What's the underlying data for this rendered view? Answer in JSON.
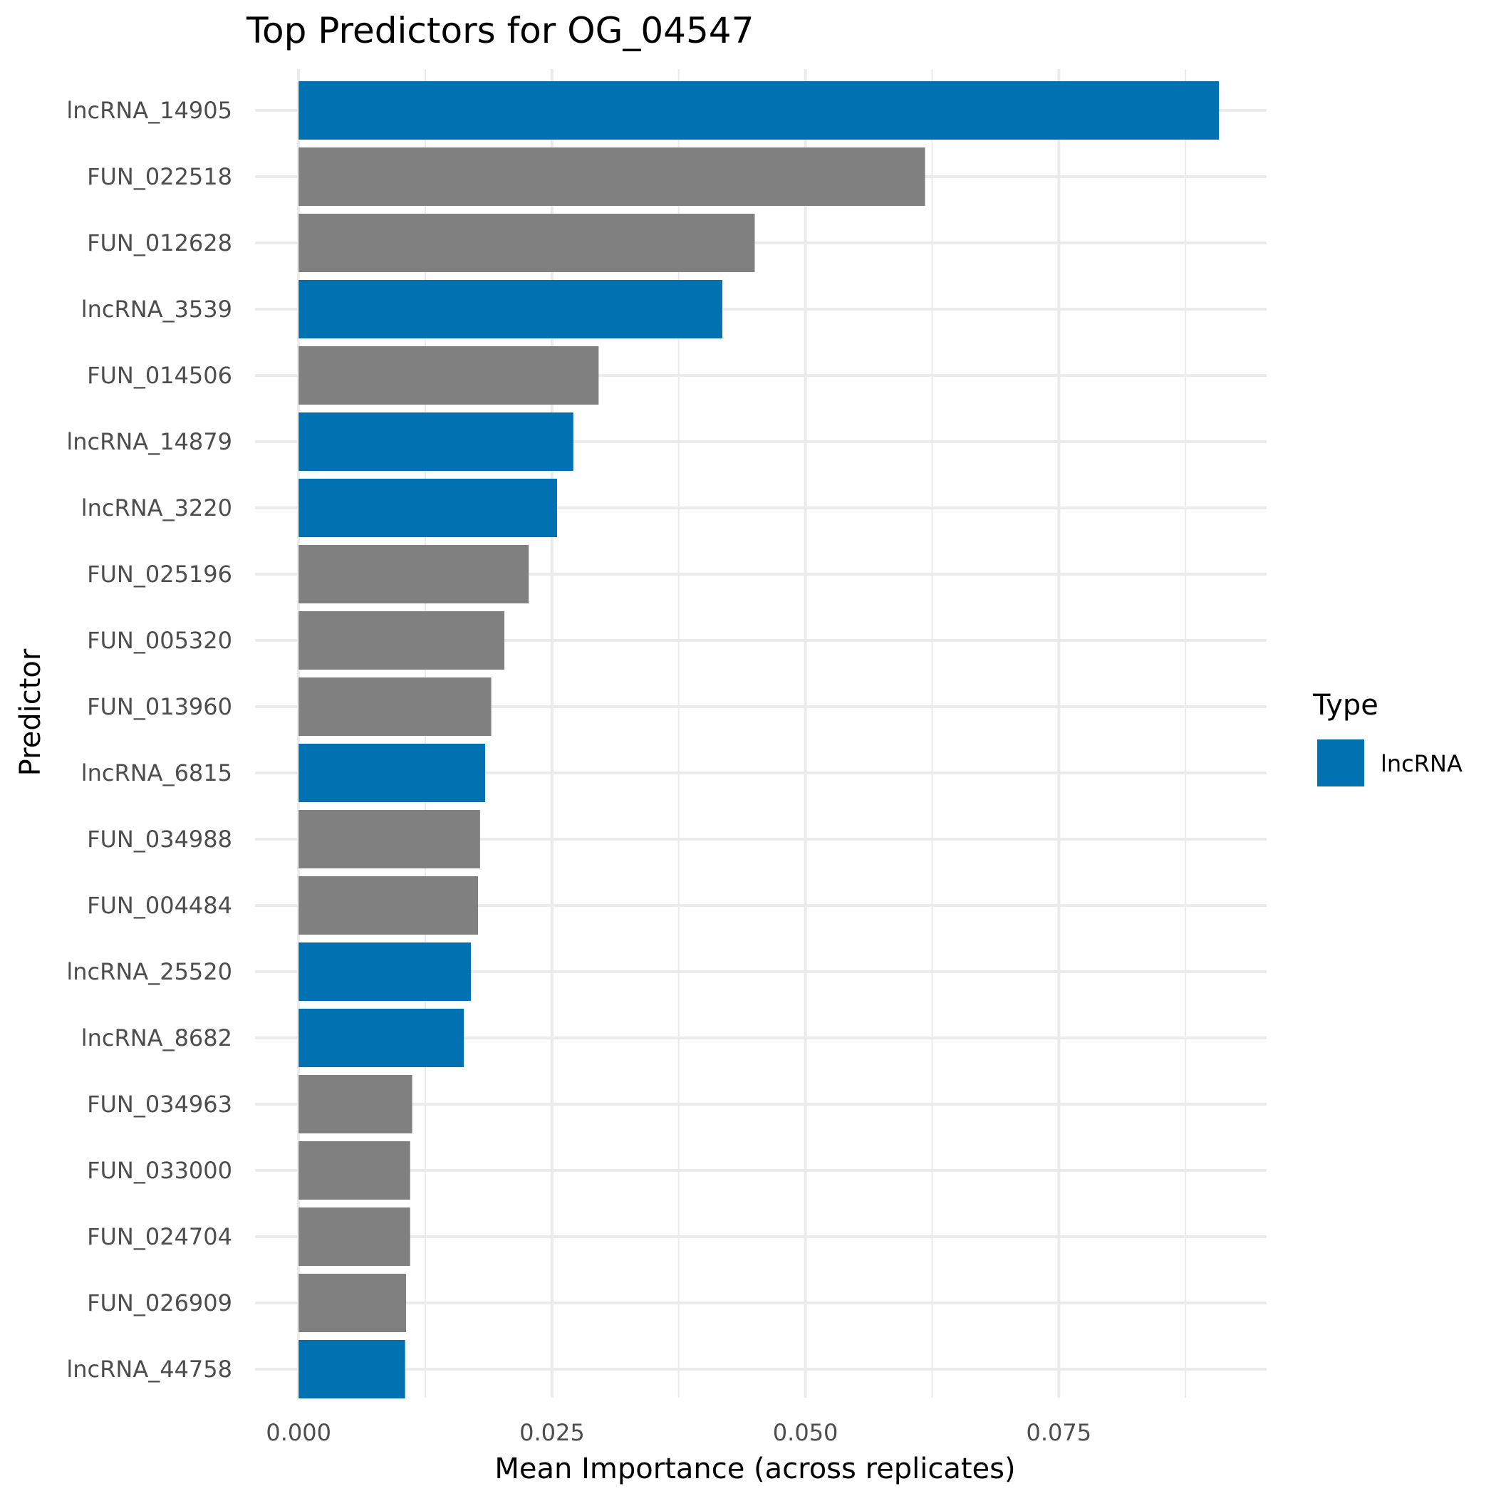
{
  "chart_data": {
    "type": "bar",
    "orientation": "horizontal",
    "title": "Top Predictors for OG_04547",
    "xlabel": "Mean Importance (across replicates)",
    "ylabel": "Predictor",
    "xlim": [
      -0.0043,
      0.0955
    ],
    "xticks": [
      0.0,
      0.025,
      0.05,
      0.075
    ],
    "xtick_labels": [
      "0.000",
      "0.025",
      "0.050",
      "0.075"
    ],
    "grid": true,
    "legend": {
      "title": "Type",
      "position": "right",
      "entries": [
        {
          "label": "lncRNA",
          "color": "#0072B2"
        }
      ]
    },
    "colors": {
      "lncRNA": "#0072B2",
      "other": "#808080"
    },
    "categories": [
      "lncRNA_14905",
      "FUN_022518",
      "FUN_012628",
      "lncRNA_3539",
      "FUN_014506",
      "lncRNA_14879",
      "lncRNA_3220",
      "FUN_025196",
      "FUN_005320",
      "FUN_013960",
      "lncRNA_6815",
      "FUN_034988",
      "FUN_004484",
      "lncRNA_25520",
      "lncRNA_8682",
      "FUN_034963",
      "FUN_033000",
      "FUN_024704",
      "FUN_026909",
      "lncRNA_44758"
    ],
    "values": [
      0.0908,
      0.0618,
      0.045,
      0.0418,
      0.0296,
      0.0271,
      0.0255,
      0.0227,
      0.0203,
      0.019,
      0.0184,
      0.0179,
      0.0177,
      0.017,
      0.0163,
      0.0112,
      0.011,
      0.011,
      0.0106,
      0.0105
    ],
    "types": [
      "lncRNA",
      "other",
      "other",
      "lncRNA",
      "other",
      "lncRNA",
      "lncRNA",
      "other",
      "other",
      "other",
      "lncRNA",
      "other",
      "other",
      "lncRNA",
      "lncRNA",
      "other",
      "other",
      "other",
      "other",
      "lncRNA"
    ]
  }
}
